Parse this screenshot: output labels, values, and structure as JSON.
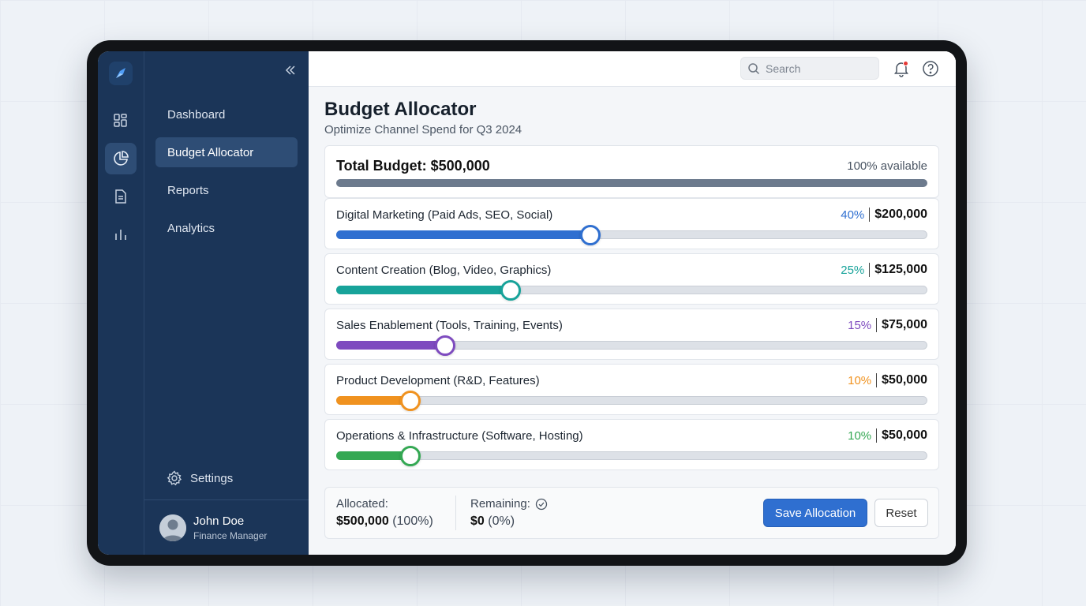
{
  "nav": {
    "items": [
      {
        "label": "Dashboard",
        "icon": "grid-icon",
        "active": false
      },
      {
        "label": "Budget Allocator",
        "icon": "pie-chart-icon",
        "active": true
      },
      {
        "label": "Reports",
        "icon": "document-icon",
        "active": false
      },
      {
        "label": "Analytics",
        "icon": "bar-chart-icon",
        "active": false
      }
    ],
    "settings_label": "Settings",
    "user": {
      "name": "John Doe",
      "role": "Finance Manager"
    }
  },
  "topbar": {
    "search_placeholder": "Search",
    "notification_dot_color": "#e53935"
  },
  "page": {
    "title": "Budget Allocator",
    "subtitle": "Optimize Channel Spend for Q3 2024"
  },
  "total": {
    "label": "Total Budget: $500,000",
    "available": "100% available"
  },
  "allocations": [
    {
      "label": "Digital Marketing (Paid Ads, SEO, Social)",
      "percent_text": "40%",
      "amount": "$200,000",
      "fraction": 0.43,
      "color": "#2f6fd0"
    },
    {
      "label": "Content Creation (Blog, Video, Graphics)",
      "percent_text": "25%",
      "amount": "$125,000",
      "fraction": 0.295,
      "color": "#17a39a"
    },
    {
      "label": "Sales Enablement (Tools, Training, Events)",
      "percent_text": "15%",
      "amount": "$75,000",
      "fraction": 0.183,
      "color": "#7e4bbf"
    },
    {
      "label": "Product Development (R&D, Features)",
      "percent_text": "10%",
      "amount": "$50,000",
      "fraction": 0.125,
      "color": "#f0921f"
    },
    {
      "label": "Operations & Infrastructure (Software, Hosting)",
      "percent_text": "10%",
      "amount": "$50,000",
      "fraction": 0.125,
      "color": "#34a853"
    }
  ],
  "summary": {
    "allocated_label": "Allocated:",
    "allocated_value": "$500,000",
    "allocated_pct": "(100%)",
    "remaining_label": "Remaining:",
    "remaining_value": "$0",
    "remaining_pct": "(0%)"
  },
  "actions": {
    "save_label": "Save Allocation",
    "reset_label": "Reset"
  }
}
